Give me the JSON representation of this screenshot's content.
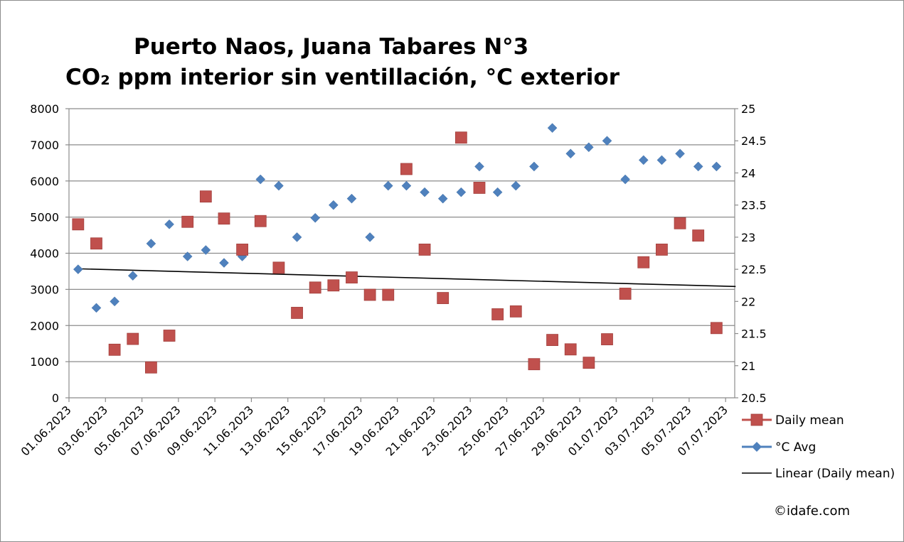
{
  "chart_data": {
    "type": "scatter",
    "title": "Puerto Naos, Juana Tabares N°3",
    "subtitle": "CO₂ ppm interior sin ventillación, °C exterior",
    "y_left": {
      "ylim": [
        0,
        8000
      ],
      "ticks": [
        "0",
        "1000",
        "2000",
        "3000",
        "4000",
        "5000",
        "6000",
        "7000",
        "8000"
      ]
    },
    "y_right": {
      "ylim": [
        20.5,
        25
      ],
      "ticks": [
        "20.5",
        "21",
        "21.5",
        "22",
        "22.5",
        "23",
        "23.5",
        "24",
        "24.5",
        "25"
      ]
    },
    "x_tick_labels": [
      "01.06.2023",
      "03.06.2023",
      "05.06.2023",
      "07.06.2023",
      "09.06.2023",
      "11.06.2023",
      "13.06.2023",
      "15.06.2023",
      "17.06.2023",
      "19.06.2023",
      "21.06.2023",
      "23.06.2023",
      "25.06.2023",
      "27.06.2023",
      "29.06.2023",
      "01.07.2023",
      "03.07.2023",
      "05.07.2023",
      "07.07.2023"
    ],
    "dates": [
      "01.06.2023",
      "02.06.2023",
      "03.06.2023",
      "04.06.2023",
      "05.06.2023",
      "06.06.2023",
      "07.06.2023",
      "08.06.2023",
      "09.06.2023",
      "10.06.2023",
      "11.06.2023",
      "12.06.2023",
      "13.06.2023",
      "14.06.2023",
      "15.06.2023",
      "16.06.2023",
      "17.06.2023",
      "18.06.2023",
      "19.06.2023",
      "20.06.2023",
      "21.06.2023",
      "22.06.2023",
      "23.06.2023",
      "24.06.2023",
      "25.06.2023",
      "26.06.2023",
      "27.06.2023",
      "28.06.2023",
      "29.06.2023",
      "30.06.2023",
      "01.07.2023",
      "02.07.2023",
      "03.07.2023",
      "04.07.2023",
      "05.07.2023",
      "06.07.2023"
    ],
    "series": [
      {
        "name": "Daily mean",
        "axis": "left",
        "color": "#c0504d",
        "marker": "square",
        "values": [
          4800,
          4270,
          1330,
          1630,
          840,
          1720,
          4870,
          5570,
          4960,
          4100,
          4890,
          3600,
          2350,
          3050,
          3110,
          3330,
          2850,
          2850,
          6330,
          4100,
          2760,
          7200,
          5810,
          2310,
          2390,
          930,
          1600,
          1340,
          970,
          1620,
          2880,
          3750,
          4100,
          4830,
          4490,
          1930
        ]
      },
      {
        "name": "°C Avg",
        "axis": "right",
        "color": "#4f81bd",
        "marker": "diamond",
        "values": [
          22.5,
          21.9,
          22.0,
          22.4,
          22.9,
          23.2,
          22.7,
          22.8,
          22.6,
          22.7,
          23.9,
          23.8,
          23.0,
          23.3,
          23.5,
          23.6,
          23.0,
          23.8,
          23.8,
          23.7,
          23.6,
          23.7,
          24.1,
          23.7,
          23.8,
          24.1,
          24.7,
          24.3,
          24.4,
          24.5,
          23.9,
          24.2,
          24.2,
          24.3,
          24.1,
          24.1
        ]
      }
    ],
    "trendline": {
      "name": "Linear (Daily mean)",
      "color": "#000000",
      "start": 3570,
      "end": 3080
    },
    "legend": [
      "Daily mean",
      "°C Avg",
      "Linear (Daily mean)"
    ],
    "legend_position": "right"
  },
  "copyright": "©idafe.com"
}
